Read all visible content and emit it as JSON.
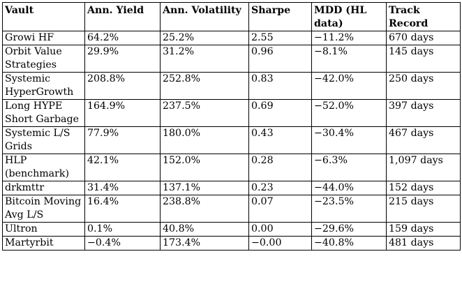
{
  "table": {
    "headers": [
      "Vault",
      "Ann. Yield",
      "Ann. Volatility",
      "Sharpe",
      "MDD (HL data)",
      "Track Record"
    ],
    "rows": [
      [
        "Growi HF",
        "64.2%",
        "25.2%",
        "2.55",
        "−11.2%",
        "670 days"
      ],
      [
        "Orbit Value Strategies",
        "29.9%",
        "31.2%",
        "0.96",
        "−8.1%",
        "145 days"
      ],
      [
        "Systemic HyperGrowth",
        "208.8%",
        "252.8%",
        "0.83",
        "−42.0%",
        "250 days"
      ],
      [
        "Long HYPE Short Garbage",
        "164.9%",
        "237.5%",
        "0.69",
        "−52.0%",
        "397 days"
      ],
      [
        "Systemic L/S Grids",
        "77.9%",
        "180.0%",
        "0.43",
        "−30.4%",
        "467 days"
      ],
      [
        "HLP (benchmark)",
        "42.1%",
        "152.0%",
        "0.28",
        "−6.3%",
        "1,097 days"
      ],
      [
        "drkmttr",
        "31.4%",
        "137.1%",
        "0.23",
        "−44.0%",
        "152 days"
      ],
      [
        "Bitcoin Moving Avg L/S",
        "16.4%",
        "238.8%",
        "0.07",
        "−23.5%",
        "215 days"
      ],
      [
        "Ultron",
        "0.1%",
        "40.8%",
        "0.00",
        "−29.6%",
        "159 days"
      ],
      [
        "Martyrbit",
        "−0.4%",
        "173.4%",
        "−0.00",
        "−40.8%",
        "481 days"
      ]
    ]
  }
}
